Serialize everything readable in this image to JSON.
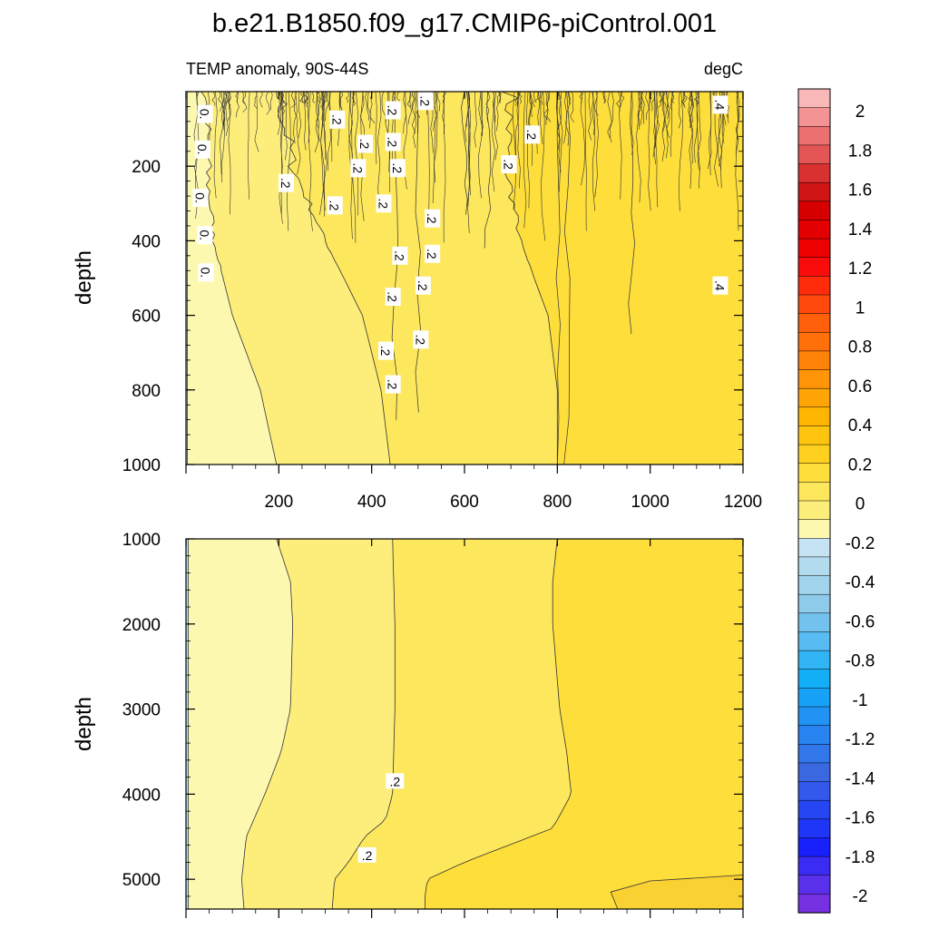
{
  "chart_data": [
    {
      "type": "heatmap",
      "panel": "upper",
      "title": "b.e21.B1850.f09_g17.CMIP6-piControl.001",
      "subtitle_left": "TEMP anomaly, 90S-44S",
      "subtitle_right": "degC",
      "ylabel": "depth",
      "xlim": [
        0,
        1200
      ],
      "ylim": [
        1000,
        0
      ],
      "x_ticks": [
        200,
        400,
        600,
        800,
        1000,
        1200
      ],
      "y_ticks": [
        200,
        400,
        600,
        800,
        1000
      ],
      "bands": [
        {
          "range": [
            -0.1,
            0.0
          ],
          "color": "#c5e3f3",
          "x_end_by_depth": [
            [
              0,
              3
            ],
            [
              1000,
              3
            ]
          ]
        },
        {
          "range": [
            0.0,
            0.1
          ],
          "color": "#fdf8b0",
          "x_end_by_depth": [
            [
              0,
              40
            ],
            [
              200,
              45
            ],
            [
              400,
              60
            ],
            [
              600,
              100
            ],
            [
              700,
              130
            ],
            [
              800,
              160
            ],
            [
              1000,
              195
            ]
          ]
        },
        {
          "range": [
            0.1,
            0.2
          ],
          "color": "#fdee7c",
          "x_end_by_depth": [
            [
              0,
              200
            ],
            [
              200,
              230
            ],
            [
              400,
              300
            ],
            [
              600,
              380
            ],
            [
              800,
              420
            ],
            [
              1000,
              440
            ]
          ]
        },
        {
          "range": [
            0.2,
            0.3
          ],
          "color": "#fde75c",
          "x_end_by_depth": [
            [
              0,
              700
            ],
            [
              200,
              690
            ],
            [
              400,
              720
            ],
            [
              600,
              780
            ],
            [
              800,
              800
            ],
            [
              1000,
              800
            ]
          ]
        },
        {
          "range": [
            0.3,
            0.4
          ],
          "color": "#fdde3a",
          "x_end_by_depth": [
            [
              0,
              1200
            ],
            [
              1000,
              1200
            ]
          ]
        }
      ],
      "contour_labels": [
        {
          "text": "0.",
          "x": 40,
          "y": 60
        },
        {
          "text": "0.",
          "x": 35,
          "y": 155
        },
        {
          "text": "0.",
          "x": 30,
          "y": 285
        },
        {
          "text": "0.",
          "x": 40,
          "y": 385
        },
        {
          "text": "0.",
          "x": 42,
          "y": 485
        },
        {
          "text": ".2",
          "x": 325,
          "y": 75
        },
        {
          "text": ".2",
          "x": 385,
          "y": 140
        },
        {
          "text": ".2",
          "x": 370,
          "y": 205
        },
        {
          "text": ".2",
          "x": 215,
          "y": 245
        },
        {
          "text": ".2",
          "x": 320,
          "y": 305
        },
        {
          "text": ".2",
          "x": 425,
          "y": 300
        },
        {
          "text": ".2",
          "x": 445,
          "y": 50
        },
        {
          "text": ".2",
          "x": 445,
          "y": 135
        },
        {
          "text": ".2",
          "x": 455,
          "y": 205
        },
        {
          "text": ".2",
          "x": 530,
          "y": 340
        },
        {
          "text": ".2",
          "x": 460,
          "y": 440
        },
        {
          "text": ".2",
          "x": 530,
          "y": 435
        },
        {
          "text": ".2",
          "x": 510,
          "y": 520
        },
        {
          "text": ".2",
          "x": 445,
          "y": 550
        },
        {
          "text": ".2",
          "x": 505,
          "y": 665
        },
        {
          "text": ".2",
          "x": 430,
          "y": 695
        },
        {
          "text": ".2",
          "x": 445,
          "y": 785
        },
        {
          "text": ".2",
          "x": 515,
          "y": 25
        },
        {
          "text": ".2",
          "x": 745,
          "y": 115
        },
        {
          "text": ".2",
          "x": 695,
          "y": 195
        },
        {
          "text": ".4",
          "x": 1150,
          "y": 35
        },
        {
          "text": ".4",
          "x": 1150,
          "y": 520
        }
      ]
    },
    {
      "type": "heatmap",
      "panel": "lower",
      "ylabel": "depth",
      "xlim": [
        0,
        1200
      ],
      "ylim": [
        5350,
        1000
      ],
      "y_ticks": [
        1000,
        2000,
        3000,
        4000,
        5000
      ],
      "bands": [
        {
          "range": [
            -0.1,
            0.0
          ],
          "color": "#c5e3f3",
          "x_end_by_depth": [
            [
              1000,
              5
            ],
            [
              5350,
              5
            ]
          ]
        },
        {
          "range": [
            0.0,
            0.1
          ],
          "color": "#fdf8b0",
          "x_end_by_depth": [
            [
              1000,
              195
            ],
            [
              1500,
              225
            ],
            [
              2000,
              230
            ],
            [
              3000,
              225
            ],
            [
              3500,
              205
            ],
            [
              4000,
              170
            ],
            [
              4500,
              130
            ],
            [
              5000,
              120
            ],
            [
              5350,
              125
            ]
          ]
        },
        {
          "range": [
            0.1,
            0.2
          ],
          "color": "#fdee7c",
          "x_end_by_depth": [
            [
              1000,
              445
            ],
            [
              2000,
              450
            ],
            [
              3000,
              450
            ],
            [
              4000,
              445
            ],
            [
              4300,
              430
            ],
            [
              4500,
              385
            ],
            [
              4800,
              350
            ],
            [
              5000,
              320
            ],
            [
              5350,
              315
            ]
          ]
        },
        {
          "range": [
            0.2,
            0.3
          ],
          "color": "#fde75c",
          "x_end_by_depth": [
            [
              1000,
              800
            ],
            [
              1500,
              790
            ],
            [
              2000,
              790
            ],
            [
              3000,
              805
            ],
            [
              3500,
              820
            ],
            [
              4000,
              830
            ],
            [
              4400,
              790
            ],
            [
              4800,
              600
            ],
            [
              5000,
              520
            ],
            [
              5200,
              515
            ],
            [
              5350,
              515
            ]
          ]
        },
        {
          "range": [
            0.3,
            0.4
          ],
          "color": "#fdde3a",
          "x_end_by_depth": [
            [
              1000,
              1200
            ],
            [
              5350,
              1200
            ]
          ]
        },
        {
          "range": [
            0.4,
            0.5
          ],
          "color": "#fad132",
          "patch": [
            [
              930,
              5350
            ],
            [
              915,
              5150
            ],
            [
              1000,
              5020
            ],
            [
              1200,
              4950
            ],
            [
              1200,
              5350
            ]
          ]
        }
      ],
      "contour_labels": [
        {
          "text": ".2",
          "x": 450,
          "y": 3850
        },
        {
          "text": ".2",
          "x": 390,
          "y": 4720
        }
      ]
    }
  ],
  "colorbar": {
    "labels": [
      "2",
      "1.8",
      "1.6",
      "1.4",
      "1.2",
      "1",
      "0.8",
      "0.6",
      "0.4",
      "0.2",
      "0",
      "-0.2",
      "-0.4",
      "-0.6",
      "-0.8",
      "-1",
      "-1.2",
      "-1.4",
      "-1.6",
      "-1.8",
      "-2"
    ],
    "colors": [
      "#f9b8b8",
      "#f39393",
      "#ec7070",
      "#e45555",
      "#d93030",
      "#d01515",
      "#d60000",
      "#e30000",
      "#ed0000",
      "#fb0c0c",
      "#ff2c0c",
      "#ff4a0c",
      "#ff5e0b",
      "#ff700a",
      "#ff8309",
      "#ff9507",
      "#ffa505",
      "#ffb603",
      "#ffc410",
      "#ffd020",
      "#fdde3a",
      "#fde75c",
      "#fdee7c",
      "#fdf8b0",
      "#c5e3f3",
      "#b2dced",
      "#a1d4ec",
      "#8ecbeb",
      "#73c2ee",
      "#58bbf1",
      "#30b4f3",
      "#12aef6",
      "#17a2f8",
      "#2093f5",
      "#2884f0",
      "#3177e9",
      "#3a68e1",
      "#3258ec",
      "#2546f2",
      "#1f35f7",
      "#1820fb",
      "#3a2cf2",
      "#5a31eb",
      "#7530e2"
    ]
  }
}
